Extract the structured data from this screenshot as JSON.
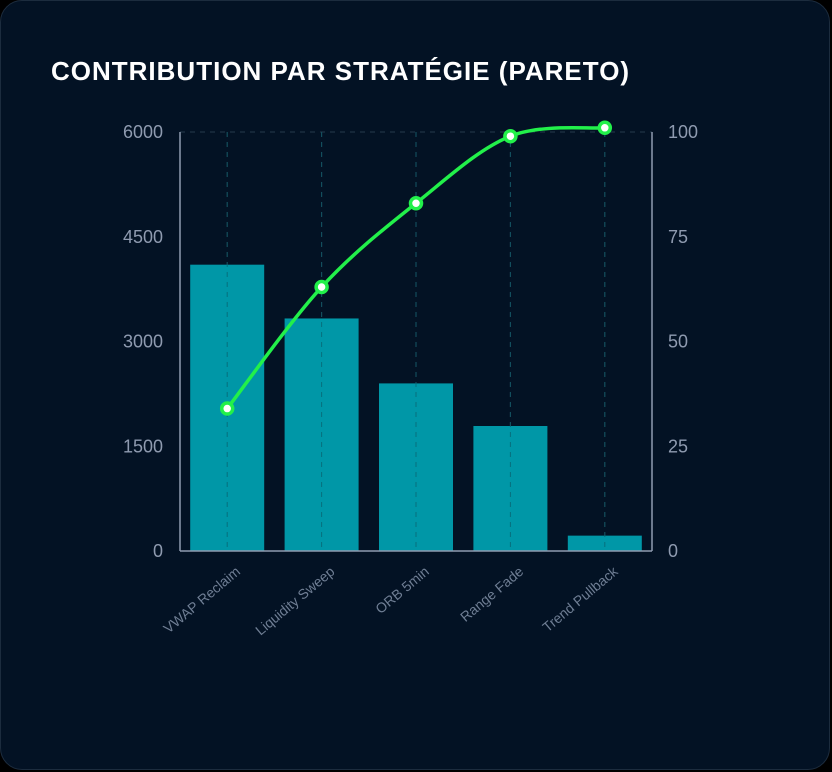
{
  "title": "CONTRIBUTION PAR STRATÉGIE (PARETO)",
  "colors": {
    "background": "#031224",
    "bar": "#0097a7",
    "line": "#22f04a",
    "marker_fill": "#ffffff",
    "grid": "#1f3345",
    "axis": "#8f9bb0"
  },
  "chart_data": {
    "type": "bar",
    "categories": [
      "VWAP Reclaim",
      "Liquidity Sweep",
      "ORB 5min",
      "Range Fade",
      "Trend Pullback"
    ],
    "series": [
      {
        "type": "bar",
        "axis": "left",
        "values": [
          4100,
          3330,
          2400,
          1790,
          220
        ]
      },
      {
        "type": "line",
        "axis": "right",
        "values": [
          34,
          63,
          83,
          99,
          101
        ]
      }
    ],
    "y_left": {
      "ticks": [
        "0",
        "1500",
        "3000",
        "4500",
        "6000"
      ],
      "range": [
        0,
        6000
      ]
    },
    "y_right": {
      "ticks": [
        "0",
        "25",
        "50",
        "75",
        "100"
      ],
      "range": [
        0,
        100
      ]
    },
    "grid": {
      "vertical": true,
      "horizontal_top": true,
      "style": "dashed"
    }
  }
}
